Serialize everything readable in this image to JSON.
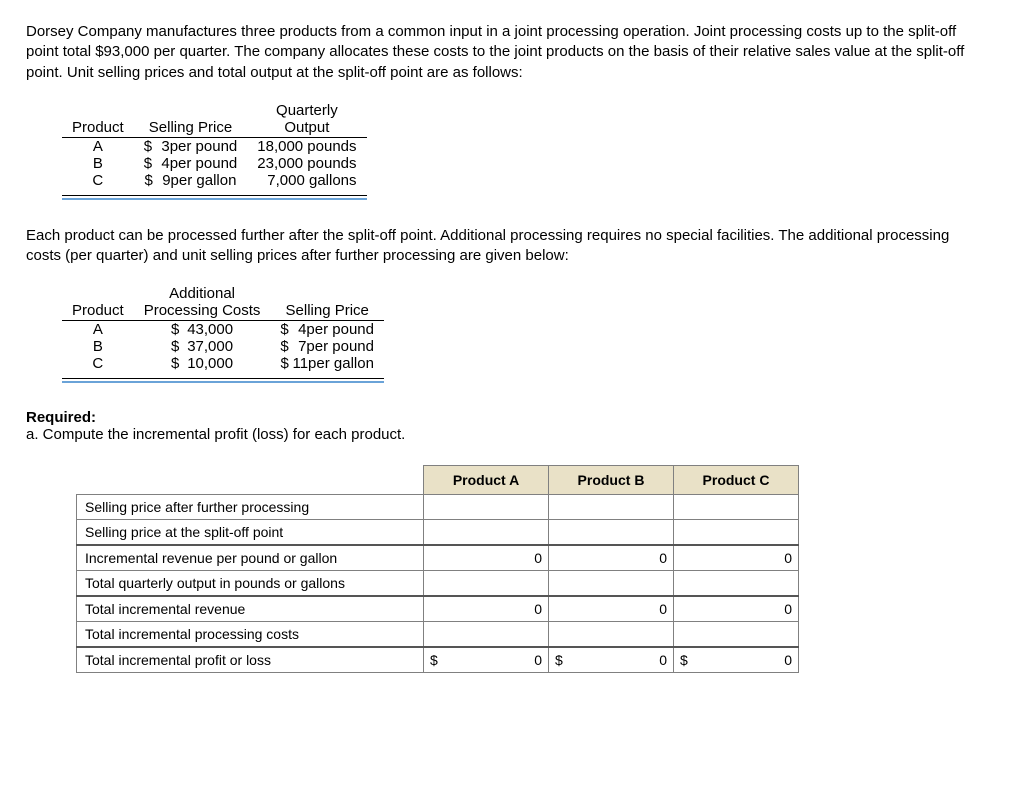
{
  "para1": "Dorsey Company manufactures three products from a common input in a joint processing operation. Joint processing costs up to the split-off point total $93,000 per quarter. The company allocates these costs to the joint products on the basis of their relative sales value at the split-off point. Unit selling prices and total output at the split-off point are as follows:",
  "table1": {
    "headers": [
      "Product",
      "Selling Price",
      "Quarterly Output"
    ],
    "rows": [
      {
        "p": "A",
        "d": "$",
        "n": "3",
        "u": " per pound",
        "o": "18,000 pounds"
      },
      {
        "p": "B",
        "d": "$",
        "n": "4",
        "u": " per pound",
        "o": "23,000 pounds"
      },
      {
        "p": "C",
        "d": "$",
        "n": "9",
        "u": " per gallon",
        "o": "7,000 gallons"
      }
    ]
  },
  "para2": "Each product can be processed further after the split-off point. Additional processing requires no special facilities. The additional processing costs (per quarter) and unit selling prices after further processing are given below:",
  "table2": {
    "headers": [
      "Product",
      "Additional Processing Costs",
      "Selling Price"
    ],
    "rows": [
      {
        "p": "A",
        "d1": "$",
        "c": "43,000",
        "d2": "$",
        "n": "4",
        "u": " per pound"
      },
      {
        "p": "B",
        "d1": "$",
        "c": "37,000",
        "d2": "$",
        "n": "7",
        "u": " per pound"
      },
      {
        "p": "C",
        "d1": "$",
        "c": "10,000",
        "d2": "$",
        "n": "11",
        "u": " per gallon"
      }
    ]
  },
  "required_label": "Required:",
  "required_a": "a.  Compute the incremental profit (loss) for each product.",
  "answer": {
    "col_headers": [
      "Product A",
      "Product B",
      "Product C"
    ],
    "rows": [
      {
        "label": "Selling price after further processing",
        "a": "",
        "b": "",
        "c": "",
        "sep": false,
        "da": "",
        "db": "",
        "dc": ""
      },
      {
        "label": "Selling price at the split-off point",
        "a": "",
        "b": "",
        "c": "",
        "sep": false,
        "da": "",
        "db": "",
        "dc": ""
      },
      {
        "label": "Incremental revenue per pound or gallon",
        "a": "0",
        "b": "0",
        "c": "0",
        "sep": true,
        "da": "",
        "db": "",
        "dc": ""
      },
      {
        "label": "Total quarterly output in pounds or gallons",
        "a": "",
        "b": "",
        "c": "",
        "sep": false,
        "da": "",
        "db": "",
        "dc": ""
      },
      {
        "label": "Total incremental revenue",
        "a": "0",
        "b": "0",
        "c": "0",
        "sep": true,
        "da": "",
        "db": "",
        "dc": ""
      },
      {
        "label": "Total incremental processing costs",
        "a": "",
        "b": "",
        "c": "",
        "sep": false,
        "da": "",
        "db": "",
        "dc": ""
      },
      {
        "label": "Total incremental profit or loss",
        "a": "0",
        "b": "0",
        "c": "0",
        "sep": true,
        "da": "$",
        "db": "$",
        "dc": "$"
      }
    ]
  }
}
